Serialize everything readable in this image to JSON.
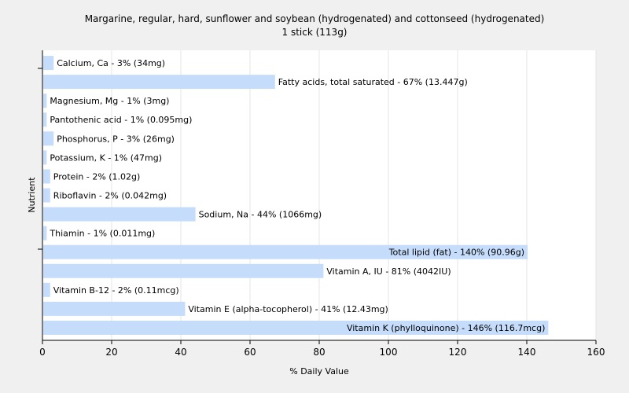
{
  "chart_data": {
    "type": "bar",
    "orientation": "horizontal",
    "title": "Margarine, regular, hard, sunflower and soybean (hydrogenated) and cottonseed (hydrogenated)",
    "subtitle": "1 stick (113g)",
    "xlabel": "% Daily Value",
    "ylabel": "Nutrient",
    "xlim": [
      0,
      160
    ],
    "xticks": [
      0,
      20,
      40,
      60,
      80,
      100,
      120,
      140,
      160
    ],
    "grid": true,
    "bar_color": "#c6dcfb",
    "categories": [
      "Calcium, Ca",
      "Fatty acids, total saturated",
      "Magnesium, Mg",
      "Pantothenic acid",
      "Phosphorus, P",
      "Potassium, K",
      "Protein",
      "Riboflavin",
      "Sodium, Na",
      "Thiamin",
      "Total lipid (fat)",
      "Vitamin A, IU",
      "Vitamin B-12",
      "Vitamin E (alpha-tocopherol)",
      "Vitamin K (phylloquinone)"
    ],
    "values": [
      3,
      67,
      1,
      1,
      3,
      1,
      2,
      2,
      44,
      1,
      140,
      81,
      2,
      41,
      146
    ],
    "labels": [
      "Calcium, Ca - 3% (34mg)",
      "Fatty acids, total saturated - 67% (13.447g)",
      "Magnesium, Mg - 1% (3mg)",
      "Pantothenic acid - 1% (0.095mg)",
      "Phosphorus, P - 3% (26mg)",
      "Potassium, K - 1% (47mg)",
      "Protein - 2% (1.02g)",
      "Riboflavin - 2% (0.042mg)",
      "Sodium, Na - 44% (1066mg)",
      "Thiamin - 1% (0.011mg)",
      "Total lipid (fat) - 140% (90.96g)",
      "Vitamin A, IU - 81% (4042IU)",
      "Vitamin B-12 - 2% (0.11mcg)",
      "Vitamin E (alpha-tocopherol) - 41% (12.43mg)",
      "Vitamin K (phylloquinone) - 146% (116.7mcg)"
    ]
  }
}
